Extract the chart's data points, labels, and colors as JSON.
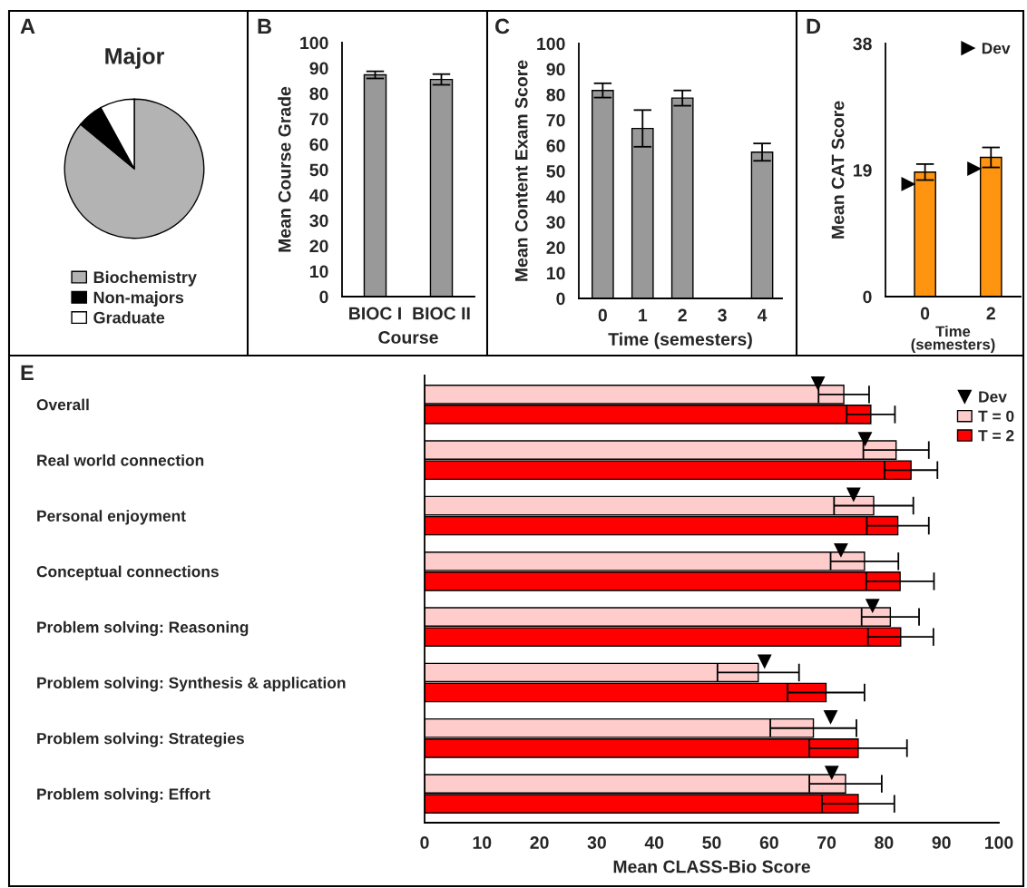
{
  "chart_data": [
    {
      "type": "pie",
      "title": "Major",
      "categories": [
        "Biochemistry",
        "Non-majors",
        "Graduate"
      ],
      "values": [
        86,
        6,
        8
      ],
      "colors": [
        "#b3b3b3",
        "#000000",
        "#ffffff"
      ],
      "legend": "bottom",
      "annotations": [
        "A"
      ]
    },
    {
      "type": "bar",
      "categories": [
        "BIOC I",
        "BIOC II"
      ],
      "values": [
        87.3,
        85.5
      ],
      "errors": [
        1.4,
        2.1
      ],
      "color": "#999999",
      "xlabel": "Course",
      "ylabel": "Mean Course Grade",
      "ylim": [
        0,
        100
      ],
      "yticks": [
        0,
        10,
        20,
        30,
        40,
        50,
        60,
        70,
        80,
        90,
        100
      ],
      "annotations": [
        "B"
      ]
    },
    {
      "type": "bar",
      "categories": [
        "0",
        "1",
        "2",
        "3",
        "4"
      ],
      "values": [
        81.6,
        66.7,
        78.6,
        null,
        57.4
      ],
      "errors": [
        2.8,
        7.2,
        3,
        null,
        3.4
      ],
      "color": "#999999",
      "xlabel": "Time (semesters)",
      "ylabel": "Mean Content Exam Score",
      "ylim": [
        0,
        100
      ],
      "yticks": [
        0,
        10,
        20,
        30,
        40,
        50,
        60,
        70,
        80,
        90,
        100
      ],
      "annotations": [
        "C"
      ]
    },
    {
      "type": "bar",
      "categories": [
        "0",
        "2"
      ],
      "series": [
        {
          "type": "scatter",
          "name": "Dev",
          "color": "#000000",
          "marker": "triangle",
          "values": [
            16.9,
            19.2
          ]
        },
        {
          "type": "bar",
          "color": "#ff9410",
          "values": [
            18.7,
            20.9
          ],
          "errors": [
            1.2,
            1.5
          ]
        }
      ],
      "xlabel": "Time\n(semesters)",
      "ylabel": "Mean CAT Score",
      "ylim": [
        0,
        38
      ],
      "yticks": [
        0,
        19,
        38
      ],
      "legend": "top right",
      "annotations": [
        "D"
      ]
    },
    {
      "type": "bar",
      "orientation": "horizontal",
      "categories": [
        "Overall",
        "Real world connection",
        "Personal enjoyment",
        "Conceptual connections",
        "Problem solving: Reasoning",
        "Problem solving: Synthesis & application",
        "Problem solving: Strategies",
        "Problem solving: Effort"
      ],
      "series": [
        {
          "type": "scatter",
          "name": "Dev",
          "color": "#000000",
          "marker": "triangle",
          "values": [
            68.5,
            76.7,
            74.7,
            72.5,
            78.0,
            59.2,
            70.7,
            70.9
          ]
        },
        {
          "type": "bar",
          "name": "T = 0",
          "color": "#ffcccc",
          "values": [
            73.0,
            82.1,
            78.2,
            76.6,
            81.1,
            58.1,
            67.7,
            73.3
          ],
          "errors": [
            4.4,
            5.7,
            6.9,
            5.9,
            5.0,
            7.1,
            7.5,
            6.3
          ]
        },
        {
          "type": "bar",
          "name": "T = 2",
          "color": "#ff0000",
          "values": [
            77.7,
            84.7,
            82.4,
            82.8,
            82.9,
            69.9,
            75.5,
            75.5
          ],
          "errors": [
            4.2,
            4.6,
            5.4,
            5.9,
            5.7,
            6.7,
            8.5,
            6.3
          ]
        }
      ],
      "xlabel": "Mean CLASS-Bio Score",
      "xlim": [
        0,
        100
      ],
      "xticks": [
        0,
        10,
        20,
        30,
        40,
        50,
        60,
        70,
        80,
        90,
        100
      ],
      "legend": "top right",
      "annotations": [
        "E"
      ]
    }
  ]
}
